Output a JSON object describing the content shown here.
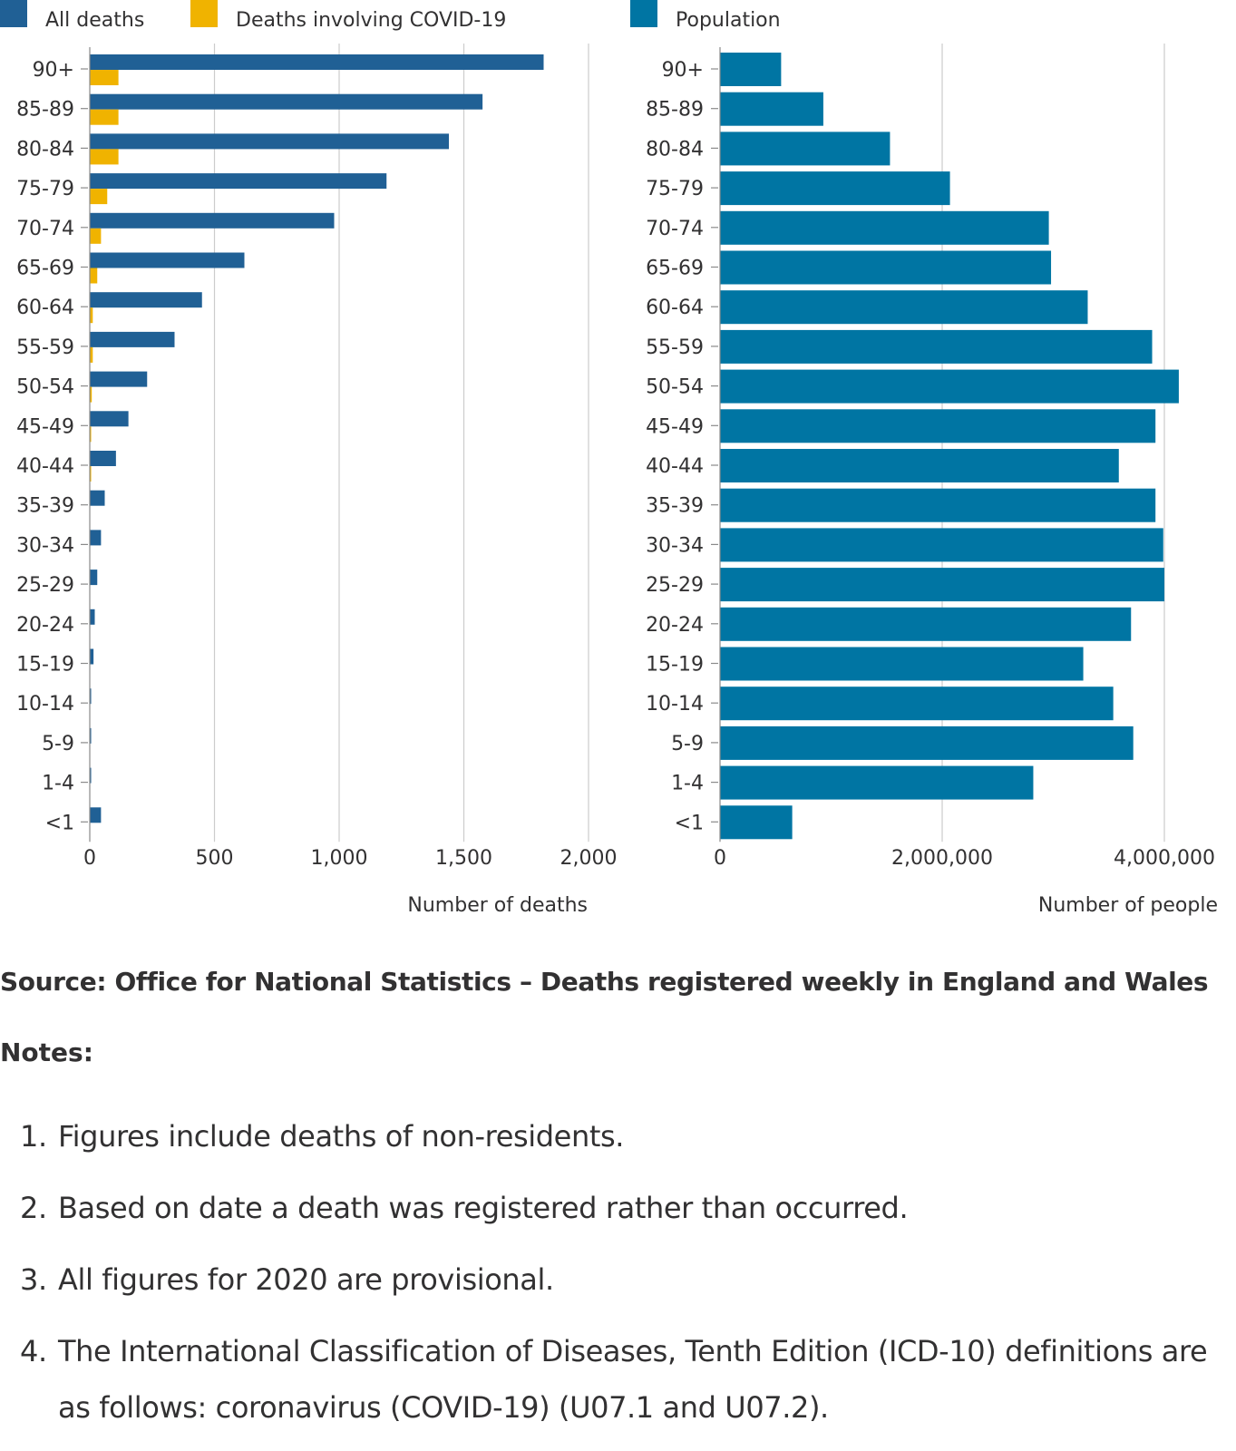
{
  "chart_data": [
    {
      "type": "bar",
      "orientation": "horizontal",
      "categories": [
        "90+",
        "85-89",
        "80-84",
        "75-79",
        "70-74",
        "65-69",
        "60-64",
        "55-59",
        "50-54",
        "45-49",
        "40-44",
        "35-39",
        "30-34",
        "25-29",
        "20-24",
        "15-19",
        "10-14",
        "5-9",
        "1-4",
        "<1"
      ],
      "series": [
        {
          "name": "All deaths",
          "color": "#206095",
          "values": [
            1820,
            1575,
            1440,
            1190,
            980,
            620,
            450,
            340,
            230,
            155,
            105,
            60,
            45,
            30,
            20,
            15,
            5,
            2,
            5,
            45
          ]
        },
        {
          "name": "Deaths involving COVID-19",
          "color": "#f0b300",
          "values": [
            115,
            115,
            115,
            70,
            45,
            30,
            12,
            12,
            8,
            5,
            3,
            0,
            0,
            0,
            0,
            0,
            0,
            0,
            0,
            0
          ]
        }
      ],
      "xlabel": "Number of deaths",
      "ylabel": "",
      "xlim": [
        0,
        2000
      ],
      "xticks": [
        "0",
        "500",
        "1,000",
        "1,500",
        "2,000"
      ],
      "tick_values": [
        0,
        500,
        1000,
        1500,
        2000
      ],
      "grid": true,
      "legend": "top"
    },
    {
      "type": "bar",
      "orientation": "horizontal",
      "categories": [
        "90+",
        "85-89",
        "80-84",
        "75-79",
        "70-74",
        "65-69",
        "60-64",
        "55-59",
        "50-54",
        "45-49",
        "40-44",
        "35-39",
        "30-34",
        "25-29",
        "20-24",
        "15-19",
        "10-14",
        "5-9",
        "1-4",
        "<1"
      ],
      "series": [
        {
          "name": "Population",
          "color": "#0075a3",
          "values": [
            550000,
            930000,
            1530000,
            2070000,
            2960000,
            2980000,
            3310000,
            3890000,
            4130000,
            3920000,
            3590000,
            3920000,
            3990000,
            4000000,
            3700000,
            3270000,
            3540000,
            3720000,
            2820000,
            650000
          ]
        }
      ],
      "xlabel": "Number of people",
      "ylabel": "",
      "xlim": [
        0,
        4000000
      ],
      "xticks": [
        "0",
        "2,000,000",
        "4,000,000"
      ],
      "tick_values": [
        0,
        2000000,
        4000000
      ],
      "grid": true,
      "legend": "top"
    }
  ],
  "source": "Source: Office for National Statistics – Deaths registered weekly in England and Wales",
  "notes": {
    "title": "Notes:",
    "items": [
      {
        "num": "1.",
        "text": "Figures include deaths of non-residents."
      },
      {
        "num": "2.",
        "text": "Based on date a death was registered rather than occurred."
      },
      {
        "num": "3.",
        "text": "All figures for 2020 are provisional."
      },
      {
        "num": "4.",
        "text": "The International Classification of Diseases, Tenth Edition (ICD-10) definitions are as follows: coronavirus (COVID-19) (U07.1 and U07.2)."
      }
    ]
  },
  "colors": {
    "text": "#323132",
    "grid": "#cccccc",
    "axis": "#8a8a8a"
  }
}
